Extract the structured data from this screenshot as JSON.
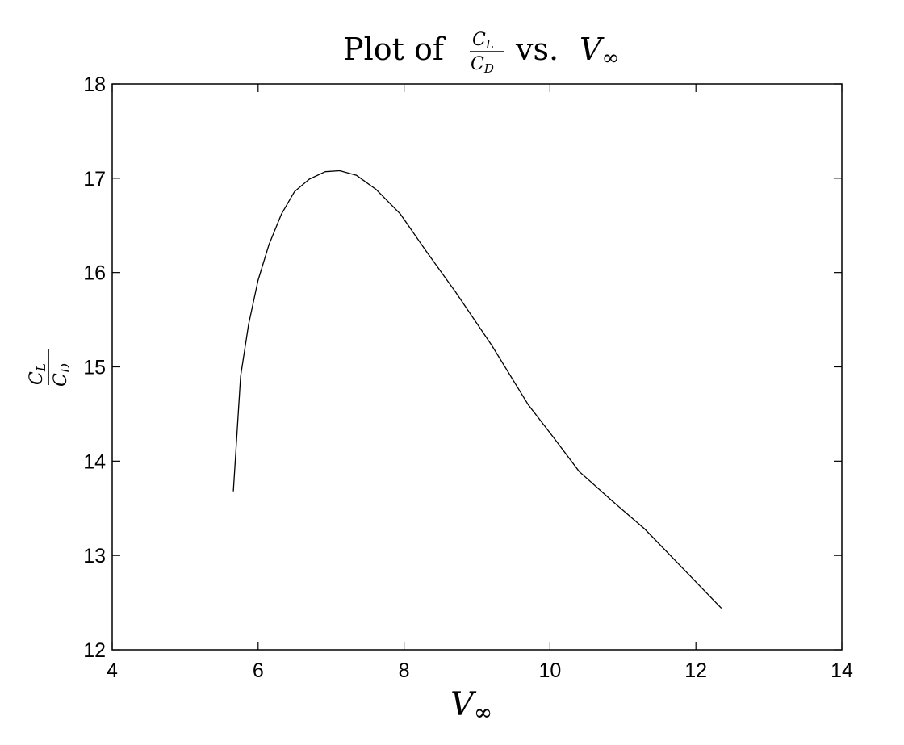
{
  "chart_data": {
    "type": "line",
    "title": {
      "prefix": "Plot of",
      "frac_num_base": "C",
      "frac_num_sub": "L",
      "frac_den_base": "C",
      "frac_den_sub": "D",
      "middle": "vs.",
      "var_base": "V",
      "var_sub": "∞"
    },
    "xlabel": {
      "base": "V",
      "sub": "∞"
    },
    "ylabel": {
      "num_base": "C",
      "num_sub": "L",
      "den_base": "C",
      "den_sub": "D"
    },
    "xlim": [
      4,
      14
    ],
    "ylim": [
      12,
      18
    ],
    "x_ticks": [
      4,
      6,
      8,
      10,
      12,
      14
    ],
    "y_ticks": [
      12,
      13,
      14,
      15,
      16,
      17,
      18
    ],
    "grid": false,
    "series": [
      {
        "color": "#000000",
        "x": [
          5.66,
          5.76,
          5.87,
          6.0,
          6.15,
          6.32,
          6.5,
          6.7,
          6.92,
          7.12,
          7.35,
          7.62,
          7.95,
          8.3,
          8.7,
          9.2,
          9.7,
          10.05,
          10.4,
          10.85,
          11.3,
          11.8,
          12.35
        ],
        "y": [
          13.68,
          14.9,
          15.45,
          15.92,
          16.3,
          16.62,
          16.86,
          16.99,
          17.07,
          17.08,
          17.03,
          16.88,
          16.62,
          16.23,
          15.8,
          15.23,
          14.6,
          14.25,
          13.89,
          13.58,
          13.28,
          12.88,
          12.44
        ]
      }
    ]
  }
}
